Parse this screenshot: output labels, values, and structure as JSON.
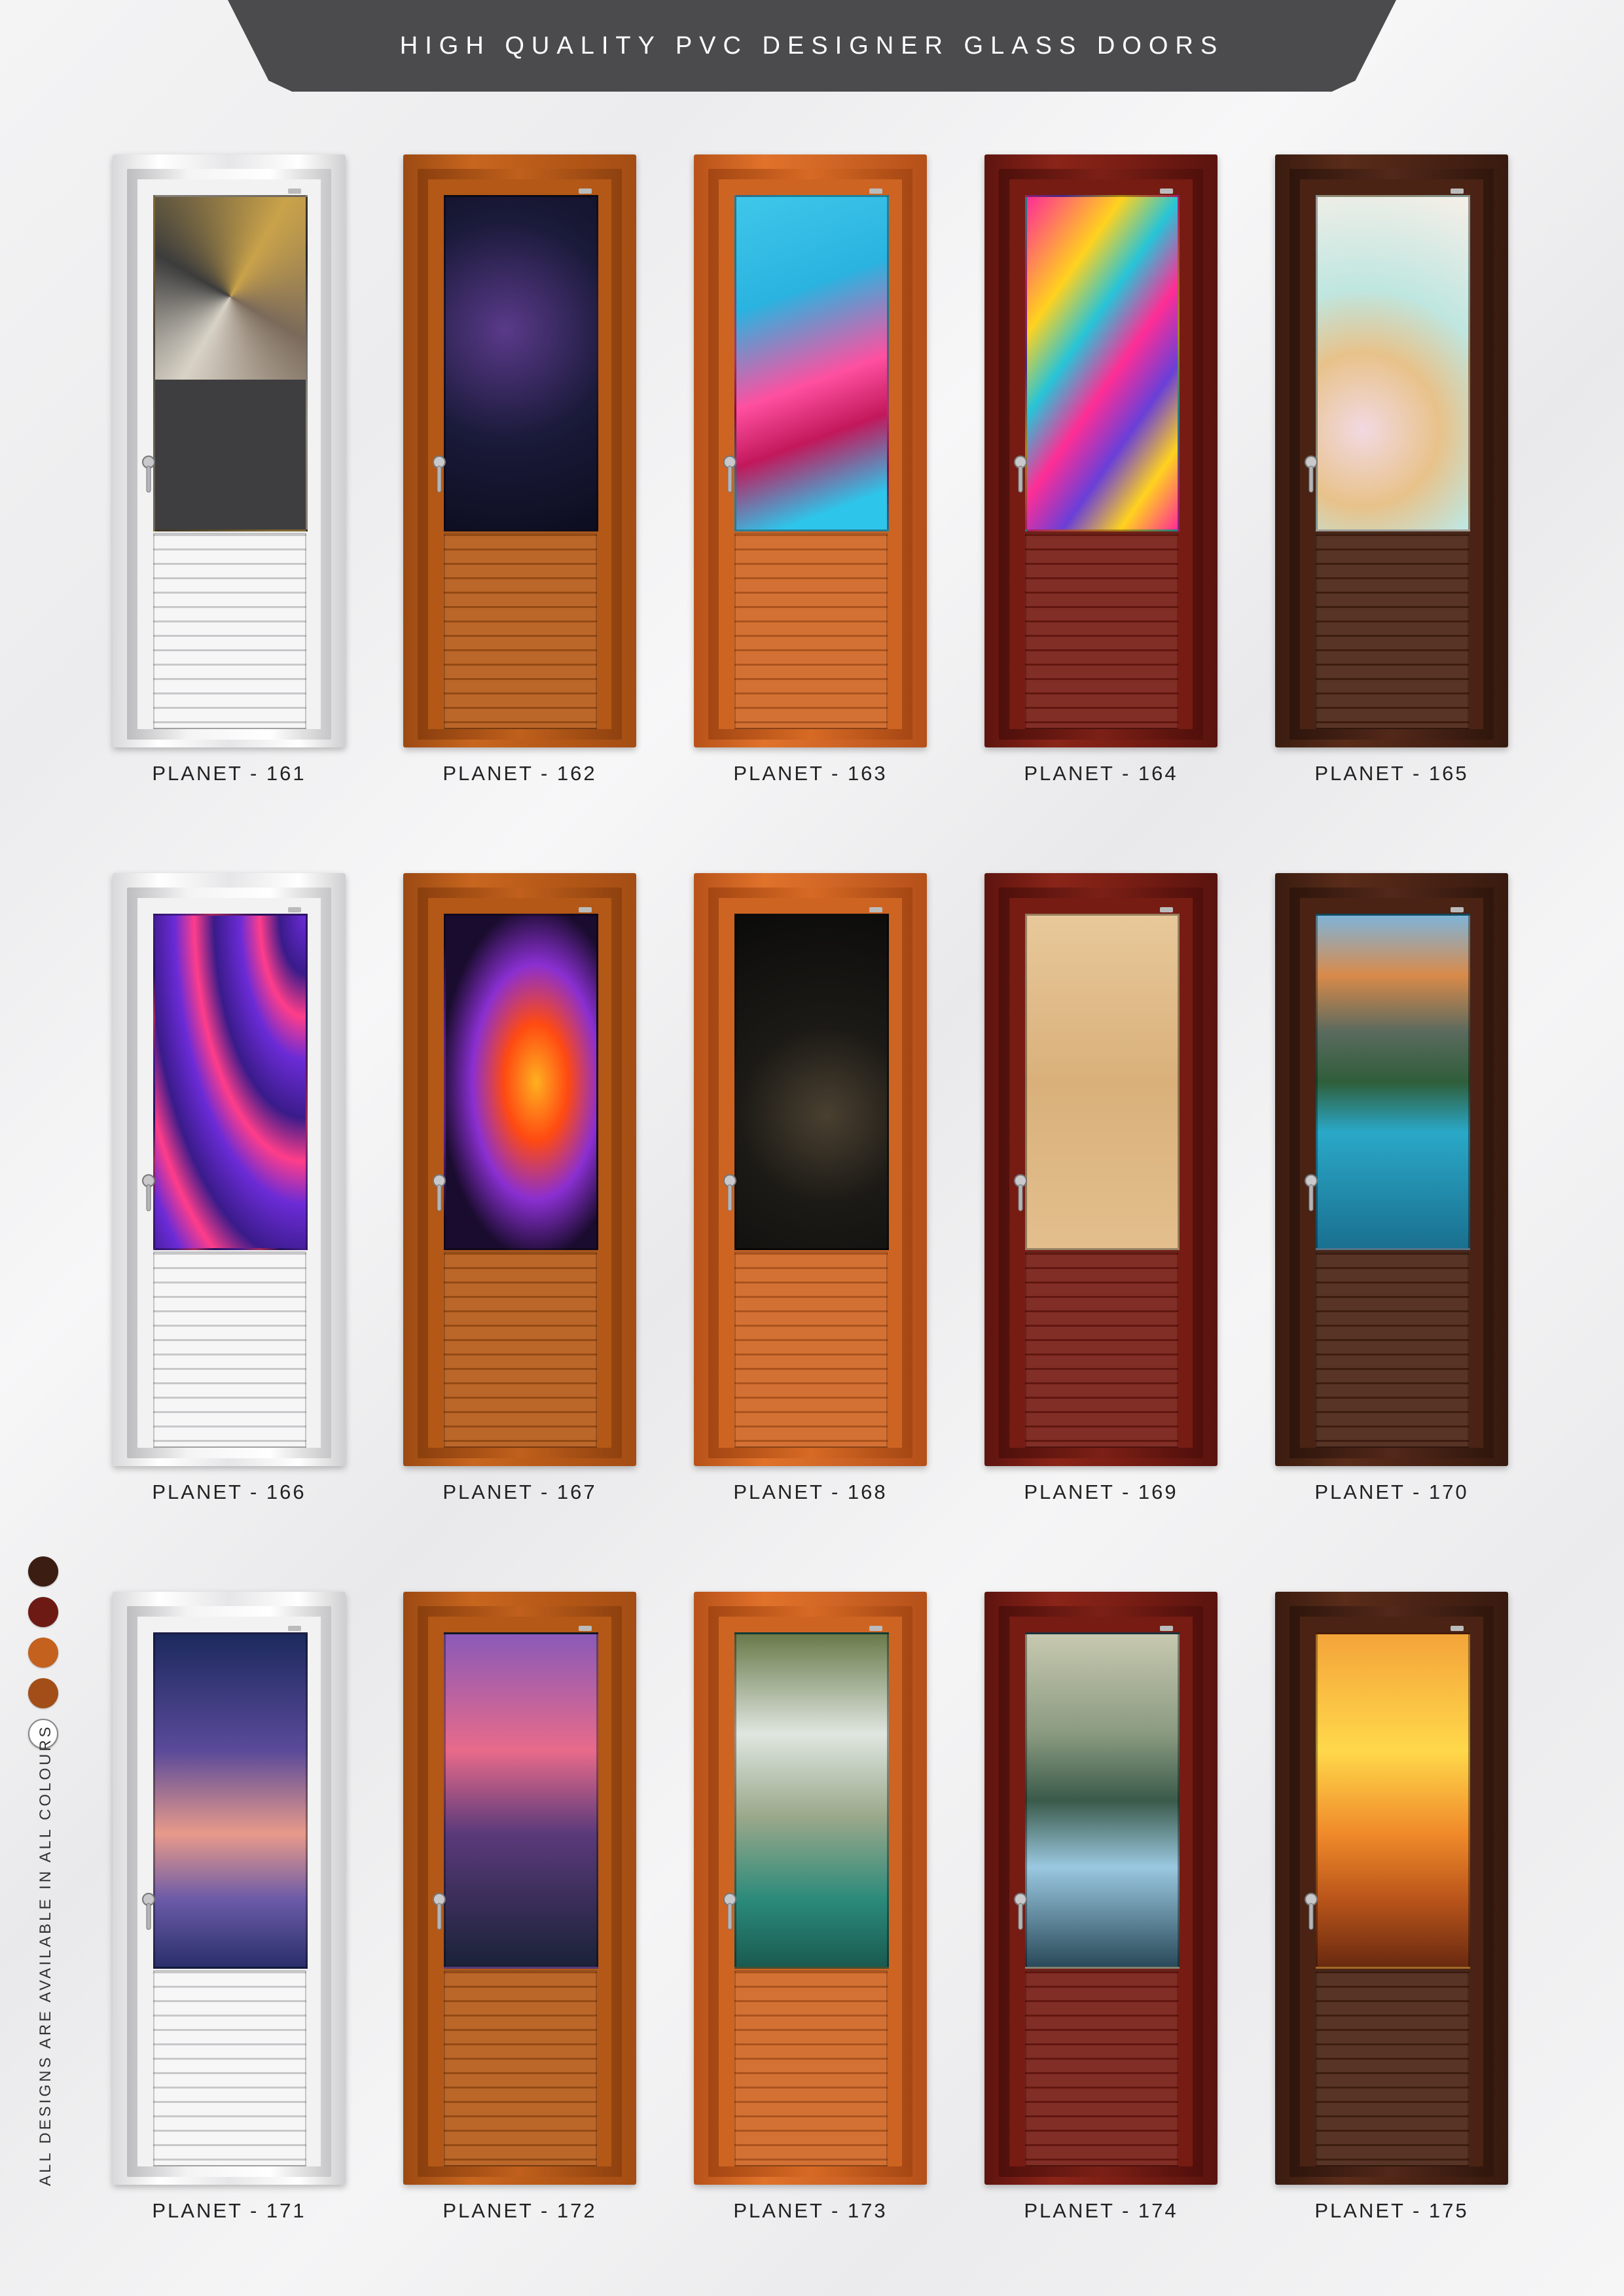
{
  "header": {
    "title": "HIGH QUALITY PVC DESIGNER GLASS DOORS"
  },
  "doors": [
    {
      "label": "PLANET - 161",
      "frame": "white",
      "artwork": "geometric-cubes"
    },
    {
      "label": "PLANET - 162",
      "frame": "teak",
      "artwork": "floating-cubes"
    },
    {
      "label": "PLANET - 163",
      "frame": "orange",
      "artwork": "pink-wave"
    },
    {
      "label": "PLANET - 164",
      "frame": "mahogany",
      "artwork": "fluid-paint"
    },
    {
      "label": "PLANET - 165",
      "frame": "walnut",
      "artwork": "gold-spheres"
    },
    {
      "label": "PLANET - 166",
      "frame": "white",
      "artwork": "purple-feathers"
    },
    {
      "label": "PLANET - 167",
      "frame": "teak",
      "artwork": "fire-flames"
    },
    {
      "label": "PLANET - 168",
      "frame": "orange",
      "artwork": "dark-spheres"
    },
    {
      "label": "PLANET - 169",
      "frame": "mahogany",
      "artwork": "desert-car"
    },
    {
      "label": "PLANET - 170",
      "frame": "walnut",
      "artwork": "mountain-lake"
    },
    {
      "label": "PLANET - 171",
      "frame": "white",
      "artwork": "hot-air-balloon"
    },
    {
      "label": "PLANET - 172",
      "frame": "teak",
      "artwork": "boat-sunset"
    },
    {
      "label": "PLANET - 173",
      "frame": "orange",
      "artwork": "waterfall"
    },
    {
      "label": "PLANET - 174",
      "frame": "mahogany",
      "artwork": "misty-forest"
    },
    {
      "label": "PLANET - 175",
      "frame": "walnut",
      "artwork": "desert-sunset"
    }
  ],
  "colour_swatches": [
    "#3b1d12",
    "#6e1a14",
    "#c4611f",
    "#a34e18",
    "#ffffff"
  ],
  "side_note": "ALL DESIGNS ARE AVAILABLE IN ALL COLOURS"
}
